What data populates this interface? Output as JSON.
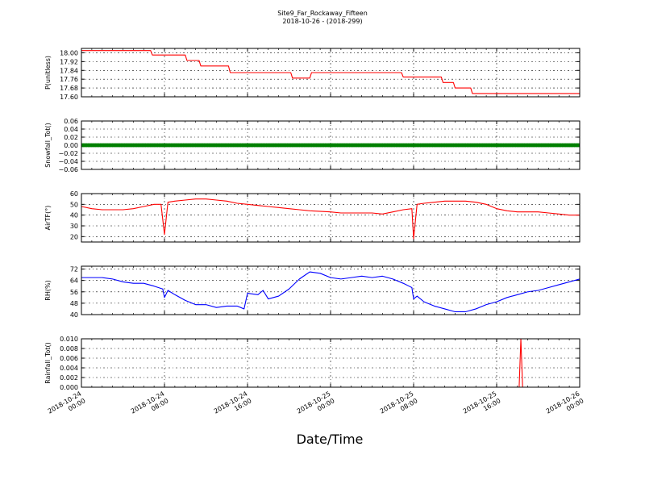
{
  "figure": {
    "title_line1": "Site9_Far_Rockaway_Fifteen",
    "title_line2": "2018-10-26 - (2018-299)",
    "xlabel": "Date/Time",
    "x_tick_labels": [
      [
        "2018-10-24",
        "00:00"
      ],
      [
        "2018-10-24",
        "08:00"
      ],
      [
        "2018-10-24",
        "16:00"
      ],
      [
        "2018-10-25",
        "00:00"
      ],
      [
        "2018-10-25",
        "08:00"
      ],
      [
        "2018-10-25",
        "16:00"
      ],
      [
        "2018-10-26",
        "00:00"
      ]
    ]
  },
  "chart_data": [
    {
      "type": "line",
      "ylabel": "P(unitless)",
      "color": "#ff0000",
      "grid": true,
      "xlim": [
        "2018-10-24 00:00",
        "2018-10-26 00:00"
      ],
      "ylim": [
        17.6,
        18.04
      ],
      "yticks": [
        "18.00",
        "17.92",
        "17.84",
        "17.76",
        "17.68",
        "17.60"
      ],
      "series": [
        {
          "x": [
            "2018-10-24 00:00",
            "2018-10-24 06:40",
            "2018-10-24 06:50",
            "2018-10-24 10:00",
            "2018-10-24 10:10",
            "2018-10-24 11:20",
            "2018-10-24 11:30",
            "2018-10-24 14:10",
            "2018-10-24 14:20",
            "2018-10-24 20:10",
            "2018-10-24 20:20",
            "2018-10-24 22:00",
            "2018-10-24 22:10",
            "2018-10-25 06:50",
            "2018-10-25 07:00",
            "2018-10-25 10:40",
            "2018-10-25 10:50",
            "2018-10-25 11:50",
            "2018-10-25 12:00",
            "2018-10-25 13:30",
            "2018-10-25 13:40",
            "2018-10-26 00:00"
          ],
          "y": [
            18.02,
            18.02,
            17.98,
            17.98,
            17.93,
            17.93,
            17.88,
            17.88,
            17.82,
            17.82,
            17.77,
            17.77,
            17.82,
            17.82,
            17.78,
            17.78,
            17.73,
            17.73,
            17.68,
            17.68,
            17.63,
            17.63
          ]
        }
      ]
    },
    {
      "type": "scatter",
      "ylabel": "Snowfall_Tot()",
      "color": "#008000",
      "grid": true,
      "xlim": [
        "2018-10-24 00:00",
        "2018-10-26 00:00"
      ],
      "ylim": [
        -0.06,
        0.06
      ],
      "yticks": [
        "0.06",
        "0.04",
        "0.02",
        "0.00",
        "−0.02",
        "−0.04",
        "−0.06"
      ],
      "series": [
        {
          "x_range": [
            "2018-10-24 00:00",
            "2018-10-26 00:00"
          ],
          "interval_minutes": 10,
          "y": 0.0
        }
      ]
    },
    {
      "type": "line",
      "ylabel": "AirTF(°)",
      "color": "#ff0000",
      "grid": true,
      "xlim": [
        "2018-10-24 00:00",
        "2018-10-26 00:00"
      ],
      "ylim": [
        15,
        60
      ],
      "yticks": [
        "60",
        "50",
        "40",
        "30",
        "20"
      ],
      "series": [
        {
          "x": [
            "2018-10-24 00:00",
            "2018-10-24 01:00",
            "2018-10-24 02:00",
            "2018-10-24 03:00",
            "2018-10-24 04:00",
            "2018-10-24 05:00",
            "2018-10-24 06:00",
            "2018-10-24 07:00",
            "2018-10-24 07:40",
            "2018-10-24 08:00",
            "2018-10-24 08:20",
            "2018-10-24 09:00",
            "2018-10-24 10:00",
            "2018-10-24 11:00",
            "2018-10-24 12:00",
            "2018-10-24 13:00",
            "2018-10-24 14:00",
            "2018-10-24 15:00",
            "2018-10-24 16:00",
            "2018-10-24 17:00",
            "2018-10-24 18:00",
            "2018-10-24 19:00",
            "2018-10-24 20:00",
            "2018-10-24 21:00",
            "2018-10-24 22:00",
            "2018-10-25 00:00",
            "2018-10-25 01:00",
            "2018-10-25 02:00",
            "2018-10-25 03:00",
            "2018-10-25 04:00",
            "2018-10-25 05:00",
            "2018-10-25 06:00",
            "2018-10-25 07:00",
            "2018-10-25 07:50",
            "2018-10-25 08:00",
            "2018-10-25 08:20",
            "2018-10-25 09:00",
            "2018-10-25 10:00",
            "2018-10-25 11:00",
            "2018-10-25 12:00",
            "2018-10-25 13:00",
            "2018-10-25 14:00",
            "2018-10-25 15:00",
            "2018-10-25 16:00",
            "2018-10-25 17:00",
            "2018-10-25 18:00",
            "2018-10-25 19:00",
            "2018-10-25 20:00",
            "2018-10-25 21:00",
            "2018-10-25 22:00",
            "2018-10-25 23:00",
            "2018-10-26 00:00"
          ],
          "y": [
            48,
            46,
            45,
            45,
            45,
            46,
            48,
            50,
            50,
            22,
            52,
            53,
            54,
            55,
            55,
            54,
            53,
            51,
            50,
            49,
            48,
            47,
            46,
            45,
            44,
            43,
            42,
            42,
            42,
            42,
            41,
            43,
            45,
            46,
            18,
            50,
            51,
            52,
            53,
            53,
            53,
            52,
            50,
            46,
            44,
            43,
            43,
            43,
            42,
            41,
            40,
            40
          ]
        }
      ]
    },
    {
      "type": "line",
      "ylabel": "RH(%)",
      "color": "#0000ff",
      "grid": true,
      "xlim": [
        "2018-10-24 00:00",
        "2018-10-26 00:00"
      ],
      "ylim": [
        40,
        74
      ],
      "yticks": [
        "72",
        "64",
        "56",
        "48",
        "40"
      ],
      "series": [
        {
          "x": [
            "2018-10-24 00:00",
            "2018-10-24 01:00",
            "2018-10-24 02:00",
            "2018-10-24 03:00",
            "2018-10-24 04:00",
            "2018-10-24 05:00",
            "2018-10-24 06:00",
            "2018-10-24 07:00",
            "2018-10-24 07:50",
            "2018-10-24 08:00",
            "2018-10-24 08:20",
            "2018-10-24 09:00",
            "2018-10-24 10:00",
            "2018-10-24 11:00",
            "2018-10-24 12:00",
            "2018-10-24 13:00",
            "2018-10-24 14:00",
            "2018-10-24 15:00",
            "2018-10-24 15:40",
            "2018-10-24 16:00",
            "2018-10-24 17:00",
            "2018-10-24 17:30",
            "2018-10-24 18:00",
            "2018-10-24 19:00",
            "2018-10-24 20:00",
            "2018-10-24 21:00",
            "2018-10-24 22:00",
            "2018-10-24 23:00",
            "2018-10-25 00:00",
            "2018-10-25 01:00",
            "2018-10-25 02:00",
            "2018-10-25 03:00",
            "2018-10-25 04:00",
            "2018-10-25 05:00",
            "2018-10-25 06:00",
            "2018-10-25 07:00",
            "2018-10-25 07:50",
            "2018-10-25 08:00",
            "2018-10-25 08:20",
            "2018-10-25 09:00",
            "2018-10-25 10:00",
            "2018-10-25 11:00",
            "2018-10-25 12:00",
            "2018-10-25 13:00",
            "2018-10-25 14:00",
            "2018-10-25 15:00",
            "2018-10-25 16:00",
            "2018-10-25 17:00",
            "2018-10-25 18:00",
            "2018-10-25 19:00",
            "2018-10-25 20:00",
            "2018-10-25 21:00",
            "2018-10-25 22:00",
            "2018-10-25 23:00",
            "2018-10-26 00:00"
          ],
          "y": [
            66,
            66,
            66,
            65,
            63,
            62,
            62,
            60,
            58,
            52,
            57,
            54,
            50,
            47,
            47,
            45,
            46,
            46,
            44,
            55,
            54,
            57,
            51,
            53,
            58,
            65,
            70,
            69,
            66,
            65,
            66,
            67,
            66,
            67,
            65,
            62,
            59,
            51,
            53,
            49,
            46,
            44,
            42,
            42,
            44,
            47,
            49,
            52,
            54,
            56,
            57,
            59,
            61,
            63,
            65
          ]
        }
      ]
    },
    {
      "type": "line",
      "ylabel": "Rainfall_Tot()",
      "color": "#ff0000",
      "grid": true,
      "xlim": [
        "2018-10-24 00:00",
        "2018-10-26 00:00"
      ],
      "ylim": [
        0.0,
        0.01
      ],
      "yticks": [
        "0.010",
        "0.008",
        "0.006",
        "0.004",
        "0.002",
        "0.000"
      ],
      "series": [
        {
          "x": [
            "2018-10-24 00:00",
            "2018-10-25 18:10",
            "2018-10-25 18:20",
            "2018-10-25 18:30",
            "2018-10-26 00:00"
          ],
          "y": [
            0.0,
            0.0,
            0.01,
            0.0,
            0.0
          ]
        }
      ]
    }
  ]
}
